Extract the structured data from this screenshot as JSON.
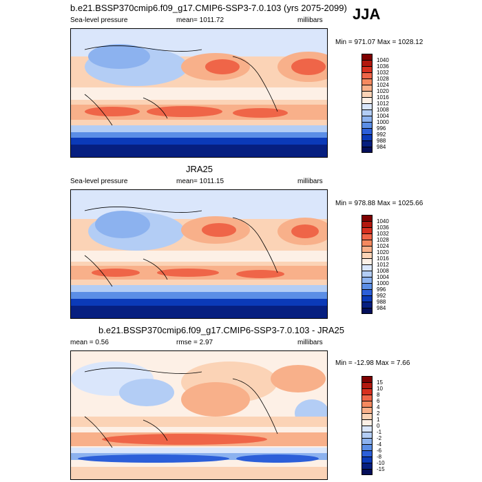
{
  "header": {
    "title": "b.e21.BSSP370cmip6.f09_g17.CMIP6-SSP3-7.0.103 (yrs 2075-2099)",
    "season": "JJA"
  },
  "panels": [
    {
      "label_left": "Sea-level pressure",
      "label_center": "mean= 1011.72",
      "label_right": "millibars",
      "minmax": "Min = 971.07 Max = 1028.12",
      "colorbar": {
        "ticks": [
          "1040",
          "1036",
          "1032",
          "1028",
          "1024",
          "1020",
          "1016",
          "1012",
          "1008",
          "1004",
          "1000",
          "996",
          "992",
          "988",
          "984"
        ],
        "colors": [
          "#7f0000",
          "#b2180e",
          "#d7301f",
          "#ef6548",
          "#f4895f",
          "#f8b08a",
          "#fbd3b6",
          "#fdf0e6",
          "#dae6fb",
          "#b3cdf5",
          "#8cb2ef",
          "#5b8ee6",
          "#2c5fd9",
          "#0b3ab8",
          "#061f80",
          "#040f5a"
        ]
      },
      "map_label": "Sea-level pressure map (model)"
    },
    {
      "title": "JRA25",
      "label_left": "Sea-level pressure",
      "label_center": "mean= 1011.15",
      "label_right": "millibars",
      "minmax": "Min = 978.88 Max = 1025.66",
      "colorbar": {
        "ticks": [
          "1040",
          "1036",
          "1032",
          "1028",
          "1024",
          "1020",
          "1016",
          "1012",
          "1008",
          "1004",
          "1000",
          "996",
          "992",
          "988",
          "984"
        ],
        "colors": [
          "#7f0000",
          "#b2180e",
          "#d7301f",
          "#ef6548",
          "#f4895f",
          "#f8b08a",
          "#fbd3b6",
          "#fdf0e6",
          "#dae6fb",
          "#b3cdf5",
          "#8cb2ef",
          "#5b8ee6",
          "#2c5fd9",
          "#0b3ab8",
          "#061f80",
          "#040f5a"
        ]
      },
      "map_label": "Sea-level pressure map (JRA25)"
    },
    {
      "title": "b.e21.BSSP370cmip6.f09_g17.CMIP6-SSP3-7.0.103 - JRA25",
      "label_left": "mean =   0.56",
      "label_center": "rmse =   2.97",
      "label_right": "millibars",
      "minmax": "Min = -12.98 Max =  7.66",
      "colorbar": {
        "ticks": [
          "15",
          "10",
          "8",
          "6",
          "4",
          "2",
          "1",
          "0",
          "-1",
          "-2",
          "-4",
          "-6",
          "-8",
          "-10",
          "-15"
        ],
        "colors": [
          "#7f0000",
          "#b2180e",
          "#d7301f",
          "#ef6548",
          "#f4895f",
          "#f8b08a",
          "#fbd3b6",
          "#fdf0e6",
          "#dae6fb",
          "#b3cdf5",
          "#8cb2ef",
          "#5b8ee6",
          "#2c5fd9",
          "#0b3ab8",
          "#061f80",
          "#040f5a"
        ]
      },
      "map_label": "Difference map (model - JRA25)"
    }
  ]
}
